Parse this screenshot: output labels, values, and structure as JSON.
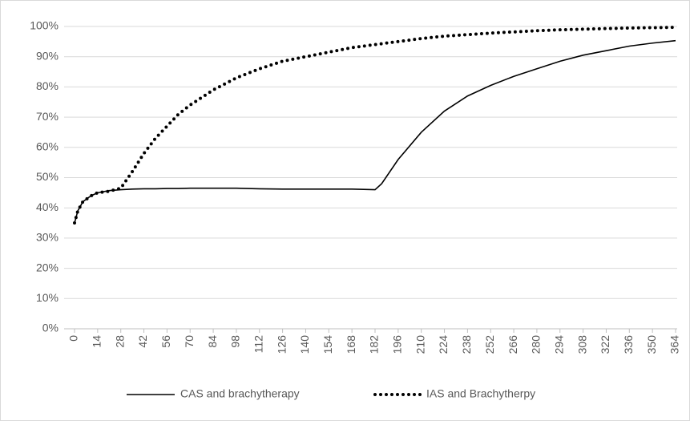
{
  "chart_data": {
    "type": "line",
    "x": [
      0,
      2,
      5,
      10,
      14,
      21,
      28,
      35,
      42,
      49,
      56,
      63,
      70,
      84,
      98,
      112,
      126,
      140,
      154,
      168,
      182,
      186,
      196,
      210,
      224,
      238,
      252,
      266,
      280,
      294,
      308,
      322,
      336,
      350,
      364
    ],
    "series": [
      {
        "name": "CAS and brachytherapy",
        "color": "#000000",
        "style": "solid",
        "values": [
          35,
          39,
          42,
          44,
          45,
          45.7,
          46,
          46.2,
          46.3,
          46.3,
          46.4,
          46.4,
          46.5,
          46.5,
          46.5,
          46.3,
          46.2,
          46.2,
          46.2,
          46.2,
          46,
          48,
          56,
          65,
          72,
          77,
          80.5,
          83.5,
          86,
          88.5,
          90.5,
          92,
          93.5,
          94.5,
          95.3
        ]
      },
      {
        "name": "IAS and Brachytherpy",
        "color": "#000000",
        "style": "dotted",
        "values": [
          35,
          39,
          42,
          44,
          45,
          45.5,
          46.5,
          52,
          58,
          63,
          67,
          71,
          74,
          79,
          83,
          86,
          88.5,
          90,
          91.5,
          93,
          94,
          94.3,
          95,
          96,
          96.8,
          97.3,
          97.8,
          98.2,
          98.6,
          98.9,
          99.1,
          99.3,
          99.5,
          99.6,
          99.7
        ]
      }
    ],
    "xlim": [
      0,
      364
    ],
    "xticks": [
      0,
      14,
      28,
      42,
      56,
      70,
      84,
      98,
      112,
      126,
      140,
      154,
      168,
      182,
      196,
      210,
      224,
      238,
      252,
      266,
      280,
      294,
      308,
      322,
      336,
      350,
      364
    ],
    "ylim": [
      0,
      100
    ],
    "yticks": [
      {
        "value": 0,
        "label": "0%"
      },
      {
        "value": 10,
        "label": "10%"
      },
      {
        "value": 20,
        "label": "20%"
      },
      {
        "value": 30,
        "label": "30%"
      },
      {
        "value": 40,
        "label": "40%"
      },
      {
        "value": 50,
        "label": "50%"
      },
      {
        "value": 60,
        "label": "60%"
      },
      {
        "value": 70,
        "label": "70%"
      },
      {
        "value": 80,
        "label": "80%"
      },
      {
        "value": 90,
        "label": "90%"
      },
      {
        "value": 100,
        "label": "100%"
      }
    ],
    "grid": true,
    "legend": "bottom"
  }
}
